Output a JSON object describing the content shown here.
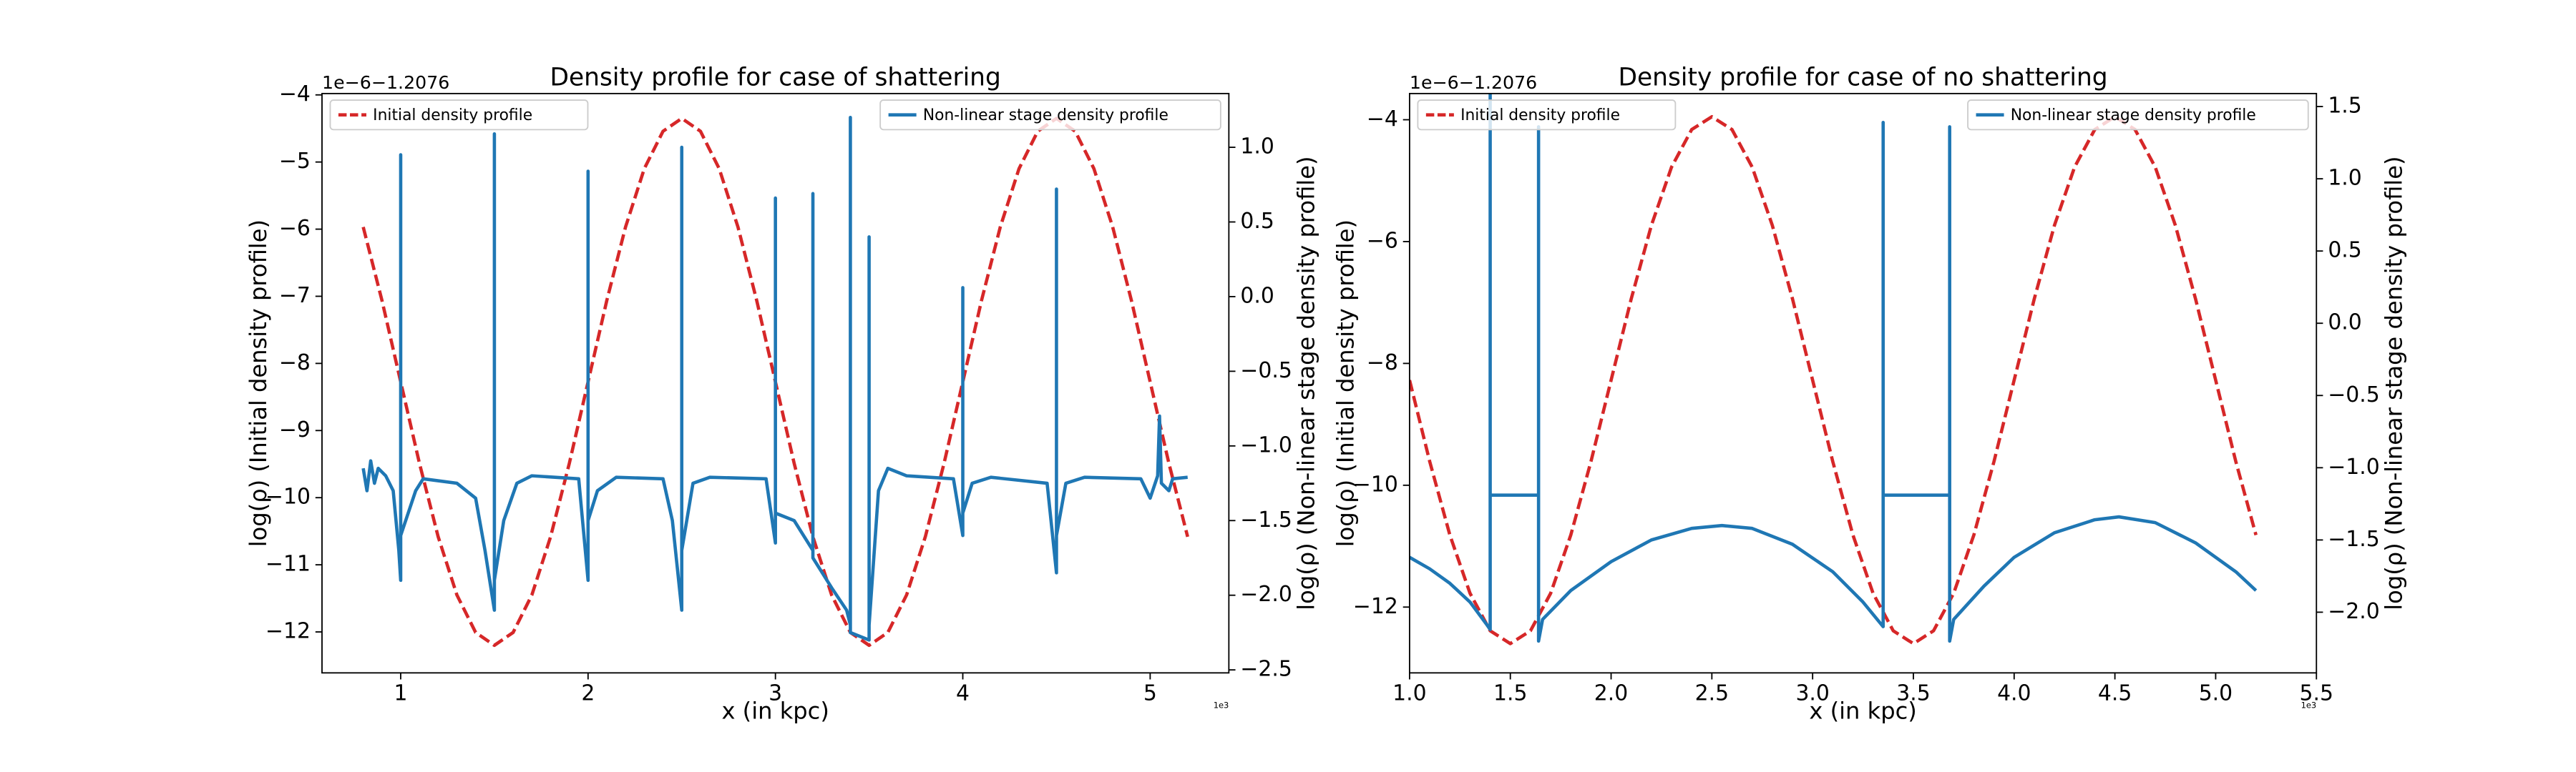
{
  "chart_data": [
    {
      "type": "line",
      "title": "Density profile for case of shattering",
      "xlabel": "x (in kpc)",
      "ylabel": "log(ρ) (Initial density profile)",
      "y2label": "log(ρ) (Non-linear stage density profile)",
      "x_offset_label": "1e3",
      "y_offset_label": "1e−6−1.2076",
      "xlim": [
        0.58,
        5.42
      ],
      "xticks": [
        1,
        2,
        3,
        4,
        5
      ],
      "ylim": [
        -12.61,
        -3.98
      ],
      "yticks": [
        {
          "value": -4,
          "label": "−4"
        },
        {
          "value": -5,
          "label": "−5"
        },
        {
          "value": -6,
          "label": "−6"
        },
        {
          "value": -7,
          "label": "−7"
        },
        {
          "value": -8,
          "label": "−8"
        },
        {
          "value": -9,
          "label": "−9"
        },
        {
          "value": -10,
          "label": "−10"
        },
        {
          "value": -11,
          "label": "−11"
        },
        {
          "value": -12,
          "label": "−12"
        }
      ],
      "y2lim": [
        -2.52,
        1.36
      ],
      "y2ticks": [
        {
          "value": 1,
          "label": "1.0"
        },
        {
          "value": 0.5,
          "label": "0.5"
        },
        {
          "value": 0,
          "label": "0.0"
        },
        {
          "value": -0.5,
          "label": "−0.5"
        },
        {
          "value": -1,
          "label": "−1.0"
        },
        {
          "value": -1.5,
          "label": "−1.5"
        },
        {
          "value": -2,
          "label": "−2.0"
        },
        {
          "value": -2.5,
          "label": "−2.5"
        }
      ],
      "series": [
        {
          "name": "Initial density profile",
          "color": "#d62728",
          "style": "dashed",
          "axis": "y",
          "legend": "upper left",
          "x": [
            0.8,
            0.9,
            1.0,
            1.1,
            1.2,
            1.3,
            1.4,
            1.5,
            1.6,
            1.7,
            1.8,
            1.9,
            2.0,
            2.1,
            2.2,
            2.3,
            2.4,
            2.5,
            2.6,
            2.7,
            2.8,
            2.9,
            3.0,
            3.1,
            3.2,
            3.3,
            3.4,
            3.5,
            3.6,
            3.7,
            3.8,
            3.9,
            4.0,
            4.1,
            4.2,
            4.3,
            4.4,
            4.5,
            4.6,
            4.7,
            4.8,
            4.9,
            5.0,
            5.1,
            5.2
          ],
          "values": [
            -5.968,
            -7.062,
            -8.275,
            -9.488,
            -10.582,
            -11.45,
            -12.008,
            -12.2,
            -12.008,
            -11.45,
            -10.582,
            -9.488,
            -8.275,
            -7.062,
            -5.968,
            -5.1,
            -4.542,
            -4.35,
            -4.542,
            -5.1,
            -5.968,
            -7.062,
            -8.275,
            -9.488,
            -10.582,
            -11.45,
            -12.008,
            -12.2,
            -12.008,
            -11.45,
            -10.582,
            -9.488,
            -8.275,
            -7.062,
            -5.968,
            -5.1,
            -4.542,
            -4.35,
            -4.542,
            -5.1,
            -5.968,
            -7.062,
            -8.275,
            -9.488,
            -10.582
          ]
        },
        {
          "name": "Non-linear stage density profile",
          "color": "#1f77b4",
          "style": "solid",
          "axis": "y2",
          "legend": "upper right",
          "x": [
            0.8,
            0.82,
            0.84,
            0.86,
            0.88,
            0.92,
            0.96,
            0.99,
            1.0,
            1.0,
            1.0,
            1.04,
            1.08,
            1.12,
            1.3,
            1.4,
            1.45,
            1.5,
            1.5,
            1.5,
            1.55,
            1.62,
            1.7,
            1.95,
            2.0,
            2.0,
            2.0,
            2.05,
            2.15,
            2.4,
            2.45,
            2.5,
            2.5,
            2.5,
            2.56,
            2.65,
            2.95,
            3.0,
            3.0,
            3.0,
            3.1,
            3.2,
            3.2,
            3.2,
            3.3,
            3.38,
            3.4,
            3.4,
            3.4,
            3.5,
            3.5,
            3.5,
            3.55,
            3.6,
            3.7,
            3.95,
            4.0,
            4.0,
            4.0,
            4.05,
            4.15,
            4.45,
            4.5,
            4.5,
            4.5,
            4.55,
            4.65,
            4.95,
            5.0,
            5.04,
            5.05,
            5.06,
            5.1,
            5.12,
            5.2
          ],
          "values": [
            -1.15,
            -1.3,
            -1.1,
            -1.25,
            -1.15,
            -1.2,
            -1.3,
            -1.7,
            -1.9,
            0.95,
            -1.6,
            -1.45,
            -1.3,
            -1.22,
            -1.25,
            -1.35,
            -1.7,
            -2.1,
            1.09,
            -1.9,
            -1.5,
            -1.25,
            -1.2,
            -1.22,
            -1.9,
            0.84,
            -1.5,
            -1.3,
            -1.21,
            -1.22,
            -1.5,
            -2.1,
            1.0,
            -1.7,
            -1.25,
            -1.21,
            -1.22,
            -1.65,
            0.66,
            -1.45,
            -1.5,
            -1.7,
            0.69,
            -1.75,
            -1.95,
            -2.1,
            -2.2,
            1.2,
            -2.25,
            -2.3,
            0.4,
            -2.2,
            -1.3,
            -1.15,
            -1.2,
            -1.22,
            -1.6,
            0.06,
            -1.45,
            -1.25,
            -1.21,
            -1.25,
            -1.85,
            0.72,
            -1.6,
            -1.25,
            -1.21,
            -1.22,
            -1.35,
            -1.2,
            -0.8,
            -1.25,
            -1.3,
            -1.22,
            -1.21
          ]
        }
      ]
    },
    {
      "type": "line",
      "title": "Density profile for case of no shattering",
      "xlabel": "x (in kpc)",
      "ylabel": "log(ρ) (Initial density profile)",
      "y2label": "log(ρ) (Non-linear stage density profile)",
      "x_offset_label": "1e3",
      "y_offset_label": "1e−6−1.2076",
      "xlim": [
        1.0,
        5.5
      ],
      "xticks": [
        {
          "value": 1,
          "label": "1.0"
        },
        {
          "value": 1.5,
          "label": "1.5"
        },
        {
          "value": 2,
          "label": "2.0"
        },
        {
          "value": 2.5,
          "label": "2.5"
        },
        {
          "value": 3,
          "label": "3.0"
        },
        {
          "value": 3.5,
          "label": "3.5"
        },
        {
          "value": 4,
          "label": "4.0"
        },
        {
          "value": 4.5,
          "label": "4.5"
        },
        {
          "value": 5,
          "label": "5.0"
        },
        {
          "value": 5.5,
          "label": "5.5"
        }
      ],
      "ylim": [
        -13.08,
        -3.57
      ],
      "yticks": [
        {
          "value": -4,
          "label": "−4"
        },
        {
          "value": -6,
          "label": "−6"
        },
        {
          "value": -8,
          "label": "−8"
        },
        {
          "value": -10,
          "label": "−10"
        },
        {
          "value": -12,
          "label": "−12"
        }
      ],
      "y2lim": [
        -2.42,
        1.59
      ],
      "y2ticks": [
        {
          "value": 1.5,
          "label": "1.5"
        },
        {
          "value": 1,
          "label": "1.0"
        },
        {
          "value": 0.5,
          "label": "0.5"
        },
        {
          "value": 0,
          "label": "0.0"
        },
        {
          "value": -0.5,
          "label": "−0.5"
        },
        {
          "value": -1,
          "label": "−1.0"
        },
        {
          "value": -1.5,
          "label": "−1.5"
        },
        {
          "value": -2,
          "label": "−2.0"
        }
      ],
      "series": [
        {
          "name": "Initial density profile",
          "color": "#d62728",
          "style": "dashed",
          "axis": "y",
          "legend": "upper left",
          "x": [
            1.0,
            1.1,
            1.2,
            1.3,
            1.4,
            1.5,
            1.6,
            1.7,
            1.8,
            1.9,
            2.0,
            2.1,
            2.2,
            2.3,
            2.4,
            2.5,
            2.6,
            2.7,
            2.8,
            2.9,
            3.0,
            3.1,
            3.2,
            3.3,
            3.4,
            3.5,
            3.6,
            3.7,
            3.8,
            3.9,
            4.0,
            4.1,
            4.2,
            4.3,
            4.4,
            4.5,
            4.6,
            4.7,
            4.8,
            4.9,
            5.0,
            5.1,
            5.2
          ],
          "values": [
            -8.275,
            -9.611,
            -10.817,
            -11.774,
            -12.389,
            -12.6,
            -12.389,
            -11.774,
            -10.817,
            -9.611,
            -8.275,
            -6.939,
            -5.733,
            -4.776,
            -4.161,
            -3.95,
            -4.161,
            -4.776,
            -5.733,
            -6.939,
            -8.275,
            -9.611,
            -10.817,
            -11.774,
            -12.389,
            -12.6,
            -12.389,
            -11.774,
            -10.817,
            -9.611,
            -8.275,
            -6.939,
            -5.733,
            -4.776,
            -4.161,
            -3.95,
            -4.161,
            -4.776,
            -5.733,
            -6.939,
            -8.275,
            -9.611,
            -10.817
          ]
        },
        {
          "name": "Non-linear stage density profile",
          "color": "#1f77b4",
          "style": "solid",
          "axis": "y2",
          "legend": "upper right",
          "x": [
            1.0,
            1.1,
            1.2,
            1.3,
            1.38,
            1.4,
            1.4,
            1.4,
            1.64,
            1.64,
            1.64,
            1.66,
            1.8,
            2.0,
            2.2,
            2.4,
            2.55,
            2.7,
            2.9,
            3.1,
            3.25,
            3.35,
            3.35,
            3.35,
            3.68,
            3.68,
            3.68,
            3.7,
            3.85,
            4.0,
            4.2,
            4.4,
            4.52,
            4.7,
            4.9,
            5.1,
            5.2
          ],
          "values": [
            -1.62,
            -1.7,
            -1.8,
            -1.93,
            -2.08,
            -2.12,
            1.6,
            -1.19,
            -1.19,
            1.36,
            -2.2,
            -2.05,
            -1.85,
            -1.65,
            -1.5,
            -1.42,
            -1.4,
            -1.42,
            -1.53,
            -1.72,
            -1.93,
            -2.1,
            1.39,
            -1.19,
            -1.19,
            1.36,
            -2.2,
            -2.05,
            -1.82,
            -1.62,
            -1.45,
            -1.36,
            -1.34,
            -1.38,
            -1.52,
            -1.72,
            -1.85
          ]
        }
      ]
    }
  ]
}
